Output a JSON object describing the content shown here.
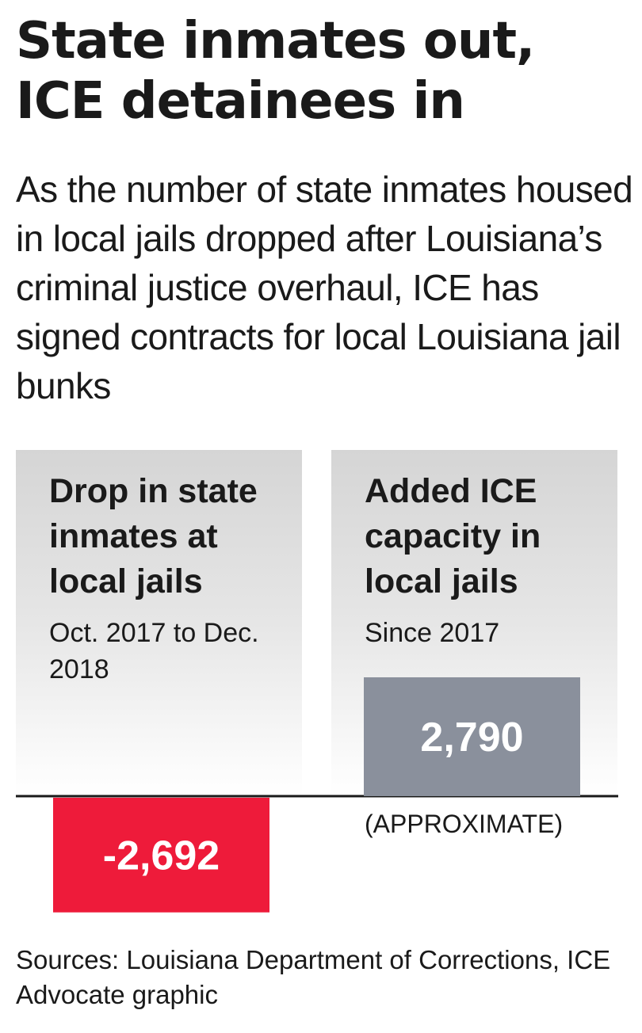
{
  "title": "State inmates out, ICE detainees in",
  "subtitle": "As the number of state inmates housed in local jails dropped after Louisiana’s criminal justice overhaul, ICE has signed contracts for local Louisiana jail bunks",
  "panels": [
    {
      "heading": "Drop in state inmates at local jails",
      "period": "Oct. 2017 to Dec. 2018"
    },
    {
      "heading": "Added ICE capacity in local jails",
      "period": "Since 2017",
      "note": "(APPROXIMATE)"
    }
  ],
  "chart_data": {
    "type": "bar",
    "categories": [
      "Drop in state inmates at local jails",
      "Added ICE capacity in local jails"
    ],
    "values": [
      -2692,
      2790
    ],
    "value_labels": [
      "-2,692",
      "2,790"
    ],
    "colors": [
      "#ee1b3a",
      "#8a909c"
    ],
    "baseline_color": "#1a1a1a",
    "grid": false
  },
  "footer": {
    "sources": "Sources: Louisiana Department of Corrections, ICE",
    "credit": "Advocate graphic"
  }
}
